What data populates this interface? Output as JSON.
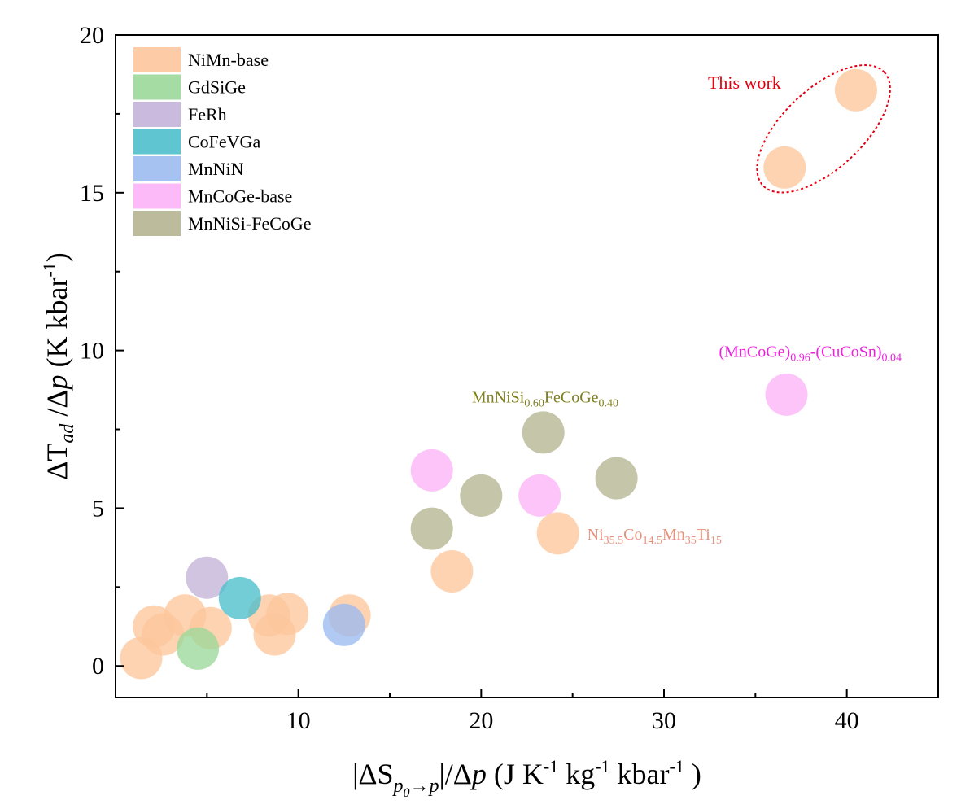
{
  "chart_data": {
    "type": "scatter",
    "xlabel": {
      "prefix": "|ΔS",
      "sub_main": "p",
      "sub_sub": "0",
      "sub_tail": "→p",
      "mid": "|/Δ",
      "var": "p",
      "unit_1": " (J K",
      "exp_1": "-1",
      "unit_2": " kg",
      "exp_2": "-1",
      "unit_3": " kbar",
      "exp_3": "-1",
      "close": " )"
    },
    "ylabel": {
      "prefix": "ΔT",
      "sub": "ad",
      "mid": " /Δ",
      "var": "p",
      "unit": " (K kbar",
      "exp": "-1",
      "close": ")"
    },
    "xlim": [
      0,
      45
    ],
    "ylim": [
      -1,
      20
    ],
    "xticks": [
      "10",
      "20",
      "30",
      "40"
    ],
    "yticks": [
      "0",
      "5",
      "10",
      "15",
      "20"
    ],
    "grid": false,
    "legend_position": "top-left",
    "series": [
      {
        "name": "NiMn-base",
        "color": "#FDC79C",
        "points": [
          [
            1.4,
            0.25
          ],
          [
            2.1,
            1.25
          ],
          [
            2.6,
            1.0
          ],
          [
            3.8,
            1.6
          ],
          [
            5.2,
            1.2
          ],
          [
            8.4,
            1.6
          ],
          [
            8.7,
            1.0
          ],
          [
            9.4,
            1.65
          ],
          [
            12.8,
            1.6
          ],
          [
            18.4,
            3.0
          ],
          [
            24.2,
            4.2
          ],
          [
            36.6,
            15.8
          ],
          [
            40.5,
            18.25
          ]
        ]
      },
      {
        "name": "GdSiGe",
        "color": "#9BD89A",
        "points": [
          [
            4.5,
            0.55
          ]
        ]
      },
      {
        "name": "FeRh",
        "color": "#C4B3D9",
        "points": [
          [
            5.0,
            2.8
          ]
        ]
      },
      {
        "name": "CoFeVGa",
        "color": "#4CBFCC",
        "points": [
          [
            6.8,
            2.15
          ]
        ]
      },
      {
        "name": "MnNiN",
        "color": "#9BBBF0",
        "points": [
          [
            12.5,
            1.3
          ]
        ]
      },
      {
        "name": "MnCoGe-base",
        "color": "#FDB3F7",
        "points": [
          [
            17.3,
            6.2
          ],
          [
            23.2,
            5.4
          ],
          [
            36.7,
            8.6
          ]
        ]
      },
      {
        "name": "MnNiSi-FeCoGe",
        "color": "#B5B592",
        "points": [
          [
            17.3,
            4.35
          ],
          [
            20.0,
            5.4
          ],
          [
            23.4,
            7.4
          ],
          [
            27.4,
            5.95
          ]
        ]
      }
    ],
    "annotations": {
      "this_work": {
        "text": "This work",
        "color": "#E60012",
        "x": 34.4,
        "y": 18.3
      },
      "mnnisi": {
        "color": "#7F7F1F",
        "x": 23.5,
        "y": 8.35,
        "parts": [
          "MnNiSi",
          "0.60",
          "FeCoGe",
          "0.40"
        ]
      },
      "mncoge": {
        "color": "#EE22DD",
        "x": 38.0,
        "y": 9.8,
        "parts": [
          "(MnCoGe)",
          "0.96",
          "-(CuCoSn)",
          "0.04"
        ]
      },
      "nicomnti": {
        "color": "#E8927C",
        "x": 25.8,
        "y": 4.0,
        "parts": [
          "Ni",
          "35.5",
          "Co",
          "14.5",
          "Mn",
          "35",
          "Ti",
          "15"
        ]
      }
    }
  }
}
